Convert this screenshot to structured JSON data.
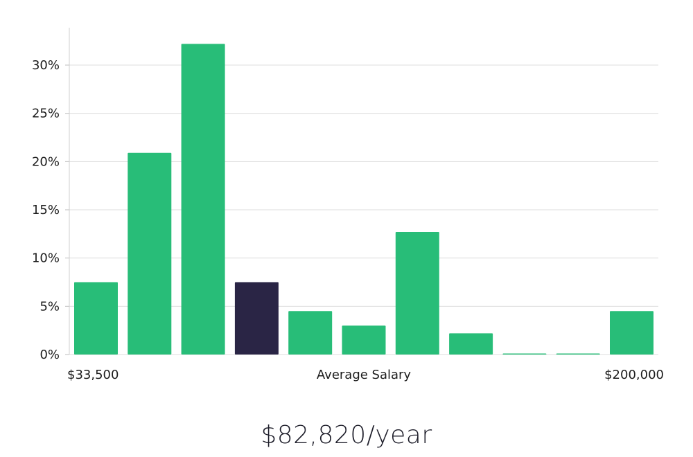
{
  "chart_data": {
    "type": "bar",
    "title": "",
    "xlabel": "Average Salary",
    "ylabel": "",
    "x_min_label": "$33,500",
    "x_max_label": "$200,000",
    "ylim": [
      0,
      34
    ],
    "yticks": [
      0,
      5,
      10,
      15,
      20,
      25,
      30
    ],
    "ytick_labels": [
      "0%",
      "5%",
      "10%",
      "15%",
      "20%",
      "25%",
      "30%"
    ],
    "values": [
      7.5,
      20.9,
      32.2,
      7.5,
      4.5,
      3.0,
      12.7,
      2.2,
      0.0,
      0.0,
      4.5
    ],
    "highlight_index": 3,
    "colors": {
      "bar": "#28bd78",
      "highlight": "#2a2545",
      "grid": "#dcdcdc",
      "axis": "#cfcfcf"
    }
  },
  "summary": {
    "average_salary": "$82,820/year"
  }
}
